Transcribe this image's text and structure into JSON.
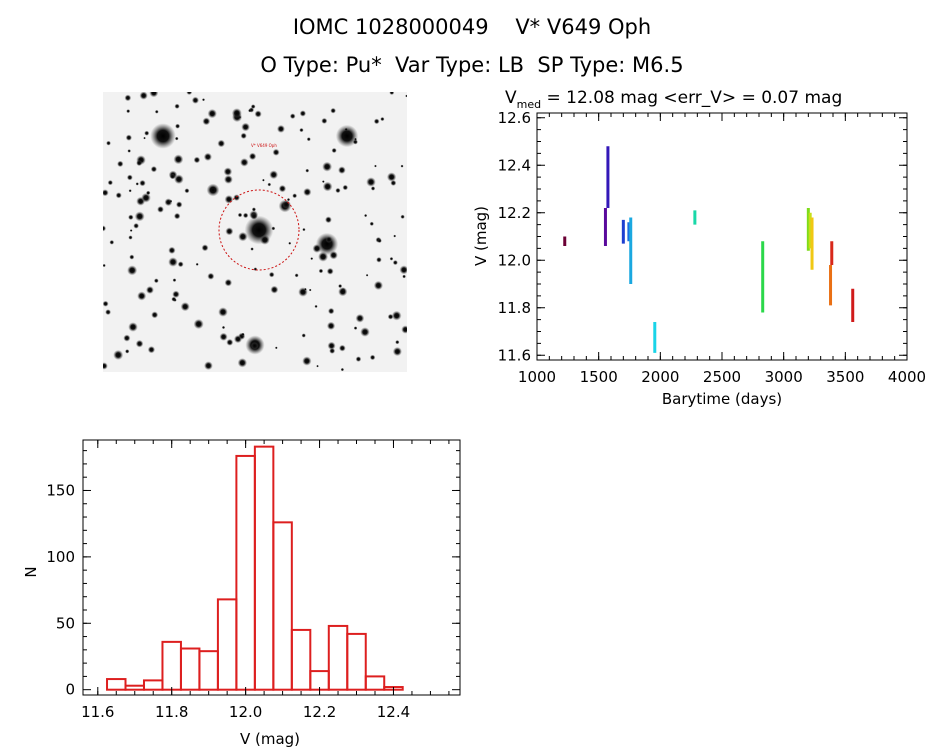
{
  "header": {
    "title_line1": "IOMC 1028000049    V* V649 Oph",
    "title_line2": "O Type: Pu*  Var Type: LB  SP Type: M6.5"
  },
  "finder_chart": {
    "target_label": "V* V649 Oph"
  },
  "chart_data": [
    {
      "type": "scatter",
      "title_prefix": "V",
      "title_subscript": "med",
      "title_rest": " = 12.08 mag <err_V> = 0.07 mag",
      "xlabel": "Barytime (days)",
      "ylabel": "V (mag)",
      "xlim": [
        1000,
        4000
      ],
      "ylim": [
        12.62,
        11.58
      ],
      "y_inverted": true,
      "xticks": [
        1000,
        1500,
        2000,
        2500,
        3000,
        3500,
        4000
      ],
      "yticks": [
        "11.6",
        "11.8",
        "12.0",
        "12.2",
        "12.4",
        "12.6"
      ],
      "series": [
        {
          "color": "#6b0035",
          "x": 1225,
          "y_range": [
            12.06,
            12.1
          ]
        },
        {
          "color": "#5a0a9c",
          "x": 1555,
          "y_range": [
            12.06,
            12.22
          ]
        },
        {
          "color": "#3318b8",
          "x": 1575,
          "y_range": [
            12.22,
            12.48
          ]
        },
        {
          "color": "#1d3fd0",
          "x": 1700,
          "y_range": [
            12.07,
            12.17
          ]
        },
        {
          "color": "#1a6ee0",
          "x": 1745,
          "y_range": [
            12.08,
            12.16
          ]
        },
        {
          "color": "#1aa8e0",
          "x": 1760,
          "y_range": [
            11.9,
            12.18
          ]
        },
        {
          "color": "#19d4e8",
          "x": 1955,
          "y_range": [
            11.61,
            11.74
          ]
        },
        {
          "color": "#19d8a8",
          "x": 2280,
          "y_range": [
            12.15,
            12.21
          ]
        },
        {
          "color": "#2bd84a",
          "x": 2830,
          "y_range": [
            11.78,
            12.08
          ]
        },
        {
          "color": "#7edc1a",
          "x": 3200,
          "y_range": [
            12.04,
            12.22
          ]
        },
        {
          "color": "#c6e01a",
          "x": 3215,
          "y_range": [
            12.05,
            12.2
          ]
        },
        {
          "color": "#f0c814",
          "x": 3230,
          "y_range": [
            11.96,
            12.18
          ]
        },
        {
          "color": "#ea7014",
          "x": 3380,
          "y_range": [
            11.81,
            11.98
          ]
        },
        {
          "color": "#d8281a",
          "x": 3390,
          "y_range": [
            11.98,
            12.08
          ]
        },
        {
          "color": "#d01a1a",
          "x": 3560,
          "y_range": [
            11.74,
            11.88
          ]
        }
      ]
    },
    {
      "type": "bar",
      "xlabel": "V (mag)",
      "ylabel": "N",
      "xlim": [
        11.56,
        12.58
      ],
      "ylim": [
        -4,
        188
      ],
      "bar_color": "#dd1f1f",
      "xticks": [
        "11.6",
        "11.8",
        "12.0",
        "12.2",
        "12.4"
      ],
      "yticks": [
        "0",
        "50",
        "100",
        "150"
      ],
      "bin_width": 0.05,
      "bin_starts": [
        11.625,
        11.675,
        11.725,
        11.775,
        11.825,
        11.875,
        11.925,
        11.975,
        12.025,
        12.075,
        12.125,
        12.175,
        12.225,
        12.275,
        12.325,
        12.375,
        12.425,
        12.475
      ],
      "values": [
        8,
        3,
        7,
        36,
        31,
        29,
        68,
        176,
        183,
        126,
        45,
        14,
        48,
        42,
        10,
        2,
        0,
        0
      ]
    }
  ]
}
